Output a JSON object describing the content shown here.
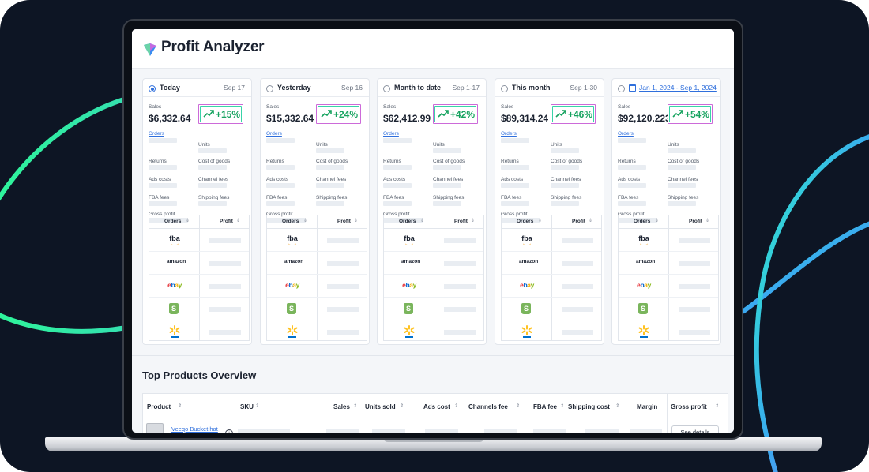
{
  "app": {
    "title": "Profit Analyzer"
  },
  "cards": [
    {
      "period": "Today",
      "date": "Sep 17",
      "selected": true,
      "sales_label": "Sales",
      "sales": "$6,332.64",
      "change": "+15%"
    },
    {
      "period": "Yesterday",
      "date": "Sep 16",
      "selected": false,
      "sales_label": "Sales",
      "sales": "$15,332.64",
      "change": "+24%"
    },
    {
      "period": "Month to date",
      "date": "Sep 1-17",
      "selected": false,
      "sales_label": "Sales",
      "sales": "$62,412.99",
      "change": "+42%"
    },
    {
      "period": "This month",
      "date": "Sep 1-30",
      "selected": false,
      "sales_label": "Sales",
      "sales": "$89,314.24",
      "change": "+46%"
    },
    {
      "period": "Jan 1, 2024 -  Sep 1, 2024",
      "date": "",
      "selected": false,
      "sales_label": "Sales",
      "sales": "$92,120.223",
      "change": "+54%",
      "is_range": true
    }
  ],
  "metrics": {
    "orders": "Orders",
    "units": "Units",
    "returns": "Returns",
    "cost_of_goods": "Cost of goods",
    "ads_costs": "Ads costs",
    "channel_fees": "Channel fees",
    "fba_fees": "FBA fees",
    "shipping_fees": "Shipping fees",
    "gross_profit": "Gross profit"
  },
  "channel_table": {
    "headers": [
      "Orders",
      "Profit"
    ],
    "channels": [
      {
        "name": "fba",
        "icon": "fba-logo-icon"
      },
      {
        "name": "amazon",
        "icon": "amazon-logo-icon"
      },
      {
        "name": "ebay",
        "icon": "ebay-logo-icon"
      },
      {
        "name": "shopify",
        "icon": "shopify-logo-icon"
      },
      {
        "name": "walmart",
        "icon": "walmart-logo-icon"
      }
    ]
  },
  "top_products": {
    "title": "Top Products Overview",
    "columns": [
      "Product",
      "SKU",
      "Sales",
      "Units sold",
      "Ads cost",
      "Channels fee",
      "FBA fee",
      "Shipping cost",
      "Margin",
      "Gross profit"
    ],
    "rows": [
      {
        "product": "Veeqo Bucket hat",
        "action": "See details"
      }
    ]
  },
  "colors": {
    "accent": "#2f6fdc",
    "positive": "#16a35f",
    "badge_border_pink": "#cc6ad9",
    "badge_border_teal": "#39d3a8",
    "background": "#0d1524"
  }
}
